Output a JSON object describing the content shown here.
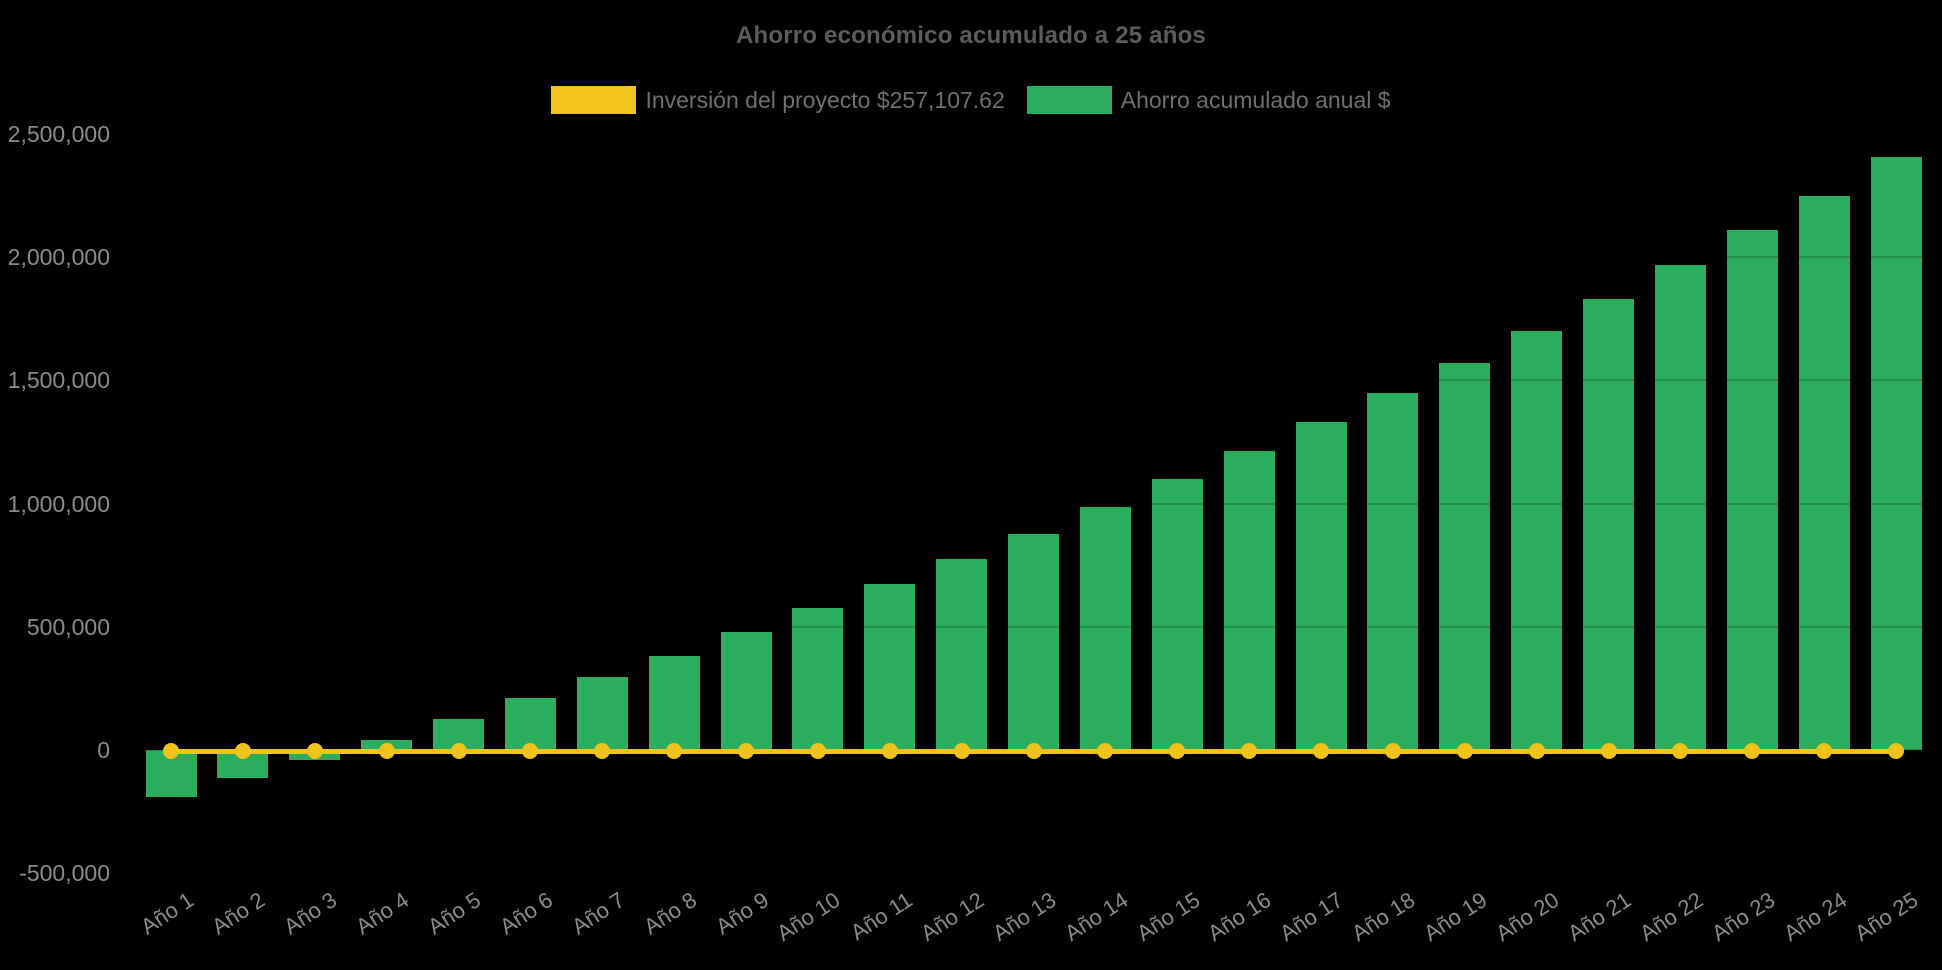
{
  "colors": {
    "background": "#000000",
    "title_text": "#5c5c5c",
    "legend_text": "#707070",
    "tick_text": "#8b8b8b",
    "investment_yellow": "#f0c41d",
    "savings_green": "#2aad5c"
  },
  "chart_data": {
    "type": "bar",
    "title": "Ahorro económico acumulado a 25 años",
    "legend_position": "top",
    "grid": false,
    "ylim": [
      -500000,
      2500000
    ],
    "ytick_step": 500000,
    "yticks": [
      {
        "label": "2,500,000",
        "value": 2500000
      },
      {
        "label": "2,000,000",
        "value": 2000000
      },
      {
        "label": "1,500,000",
        "value": 1500000
      },
      {
        "label": "1,000,000",
        "value": 1000000
      },
      {
        "label": "500,000",
        "value": 500000
      },
      {
        "label": "0",
        "value": 0
      },
      {
        "label": "-500,000",
        "value": -500000
      }
    ],
    "categories": [
      "Año 1",
      "Año 2",
      "Año 3",
      "Año 4",
      "Año 5",
      "Año 6",
      "Año 7",
      "Año 8",
      "Año 9",
      "Año 10",
      "Año 11",
      "Año 12",
      "Año 13",
      "Año 14",
      "Año 15",
      "Año 16",
      "Año 17",
      "Año 18",
      "Año 19",
      "Año 20",
      "Año 21",
      "Año 22",
      "Año 23",
      "Año 24",
      "Año 25"
    ],
    "series": [
      {
        "name": "Inversión del proyecto $257,107.62",
        "type": "line",
        "color": "#f0c41d",
        "marker": "circle",
        "investment_amount_label": "$257,107.62",
        "values": [
          0,
          0,
          0,
          0,
          0,
          0,
          0,
          0,
          0,
          0,
          0,
          0,
          0,
          0,
          0,
          0,
          0,
          0,
          0,
          0,
          0,
          0,
          0,
          0,
          0
        ]
      },
      {
        "name": "Ahorro acumulado anual $",
        "type": "bar",
        "color": "#2aad5c",
        "values": [
          -190000,
          -115000,
          -40000,
          40000,
          125000,
          210000,
          295000,
          380000,
          480000,
          575000,
          675000,
          775000,
          875000,
          985000,
          1100000,
          1215000,
          1330000,
          1450000,
          1570000,
          1700000,
          1830000,
          1970000,
          2110000,
          2250000,
          2405000
        ]
      }
    ]
  }
}
